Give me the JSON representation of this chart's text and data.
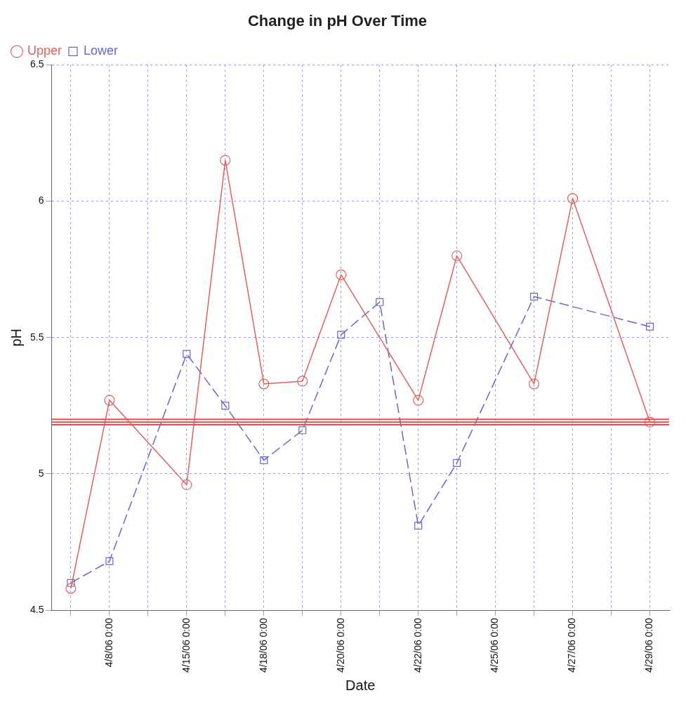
{
  "chart_data": {
    "type": "line",
    "title": "Change in pH Over Time",
    "xlabel": "Date",
    "ylabel": "pH",
    "categories": [
      null,
      "4/8/06 0:00",
      null,
      "4/15/06 0:00",
      null,
      "4/18/06 0:00",
      null,
      "4/20/06 0:00",
      null,
      "4/22/06 0:00",
      null,
      "4/25/06 0:00",
      null,
      "4/27/06 0:00",
      null,
      "4/29/06 0:00"
    ],
    "series": [
      {
        "name": "Upper",
        "color": "#e06060",
        "marker": "circle",
        "line_style": "solid",
        "values": [
          4.58,
          5.27,
          null,
          4.96,
          6.15,
          5.33,
          5.34,
          5.73,
          null,
          5.27,
          5.8,
          null,
          5.33,
          6.01,
          null,
          5.19
        ]
      },
      {
        "name": "Lower",
        "color": "#6666cc",
        "marker": "square",
        "line_style": "dashed",
        "values": [
          4.6,
          4.68,
          null,
          5.44,
          5.25,
          5.05,
          5.16,
          5.51,
          5.63,
          4.81,
          5.04,
          null,
          5.65,
          null,
          null,
          5.54
        ]
      }
    ],
    "ylim": [
      4.5,
      6.5
    ],
    "yticks": [
      4.5,
      5,
      5.5,
      6,
      6.5
    ],
    "grid": true,
    "legend": "top left",
    "ref_lines": [
      {
        "axis": "y",
        "value": 5.2,
        "color": "#e05050"
      },
      {
        "axis": "y",
        "value": 5.19,
        "color": "#e05050"
      },
      {
        "axis": "y",
        "value": 5.18,
        "color": "#e05050"
      }
    ]
  }
}
